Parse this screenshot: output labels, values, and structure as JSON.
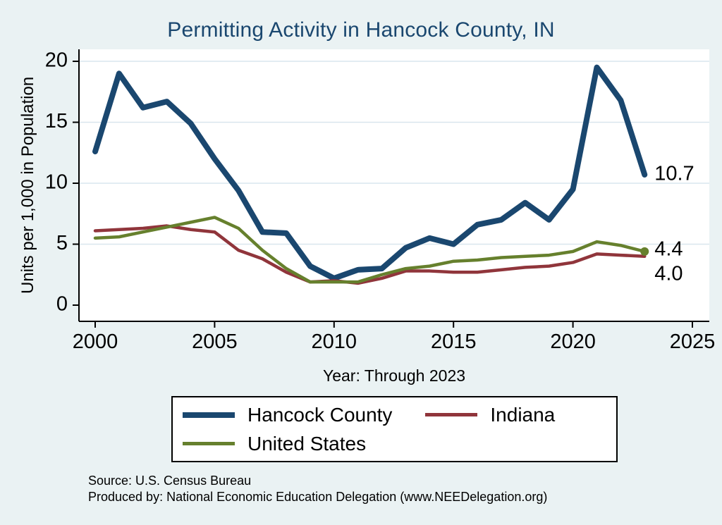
{
  "title": "Permitting Activity in Hancock County, IN",
  "axes": {
    "y_title": "Units per 1,000 in Population",
    "x_title": "Year: Through 2023",
    "y_ticks": [
      0,
      5,
      10,
      15,
      20
    ],
    "x_ticks": [
      2000,
      2005,
      2010,
      2015,
      2020,
      2025
    ]
  },
  "chart_data": {
    "type": "line",
    "title": "Permitting Activity in Hancock County, IN",
    "xlabel": "Year: Through 2023",
    "ylabel": "Units per 1,000 in Population",
    "xlim": [
      2000,
      2025
    ],
    "ylim": [
      0,
      20
    ],
    "grid": true,
    "legend_position": "bottom",
    "x": [
      2000,
      2001,
      2002,
      2003,
      2004,
      2005,
      2006,
      2007,
      2008,
      2009,
      2010,
      2011,
      2012,
      2013,
      2014,
      2015,
      2016,
      2017,
      2018,
      2019,
      2020,
      2021,
      2022,
      2023
    ],
    "series": [
      {
        "name": "Hancock County",
        "color": "#1a476f",
        "values": [
          12.6,
          19.0,
          16.2,
          16.7,
          14.9,
          12.0,
          9.4,
          6.0,
          5.9,
          3.2,
          2.2,
          2.9,
          3.0,
          4.7,
          5.5,
          5.0,
          6.6,
          7.0,
          8.4,
          7.0,
          9.5,
          19.5,
          16.8,
          10.7
        ],
        "end_label": {
          "text": "10.7",
          "dy": 0
        },
        "end_marker": false
      },
      {
        "name": "Indiana",
        "color": "#90353b",
        "values": [
          6.1,
          6.2,
          6.3,
          6.5,
          6.2,
          6.0,
          4.5,
          3.8,
          2.7,
          1.9,
          2.0,
          1.8,
          2.2,
          2.8,
          2.8,
          2.7,
          2.7,
          2.9,
          3.1,
          3.2,
          3.5,
          4.2,
          4.1,
          4.0
        ],
        "end_label": {
          "text": "4.0",
          "dy": 26
        },
        "end_marker": false
      },
      {
        "name": "United States",
        "color": "#66802d",
        "values": [
          5.5,
          5.6,
          6.0,
          6.4,
          6.8,
          7.2,
          6.3,
          4.5,
          3.0,
          1.9,
          1.9,
          1.9,
          2.5,
          3.0,
          3.2,
          3.6,
          3.7,
          3.9,
          4.0,
          4.1,
          4.4,
          5.2,
          4.9,
          4.4
        ],
        "end_label": {
          "text": "4.4",
          "dy": -2
        },
        "end_marker": true
      }
    ]
  },
  "legend": {
    "entries": [
      {
        "label": "Hancock County",
        "series": "Hancock County"
      },
      {
        "label": "Indiana",
        "series": "Indiana"
      },
      {
        "label": "United States",
        "series": "United States"
      }
    ]
  },
  "footer": {
    "source": "Source: U.S. Census Bureau",
    "produced": "Produced by: National Economic Education Delegation (www.NEEDelegation.org)"
  },
  "colors": {
    "background": "#eaf2f3",
    "plot_background": "#ffffff",
    "gridline": "#d9e6ee",
    "axis": "#000000",
    "title": "#1a476f"
  }
}
